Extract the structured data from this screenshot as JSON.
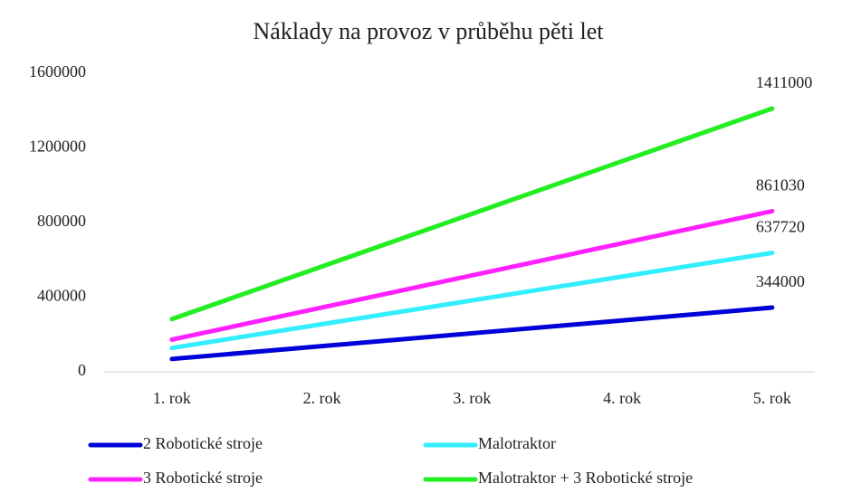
{
  "chart_data": {
    "type": "line",
    "title": "Náklady na provoz v průběhu pěti let",
    "categories": [
      "1. rok",
      "2. rok",
      "3. rok",
      "4. rok",
      "5. rok"
    ],
    "series": [
      {
        "name": "2 Robotické stroje",
        "color": "#0000d8",
        "values": [
          68800,
          137600,
          206400,
          275200,
          344000
        ]
      },
      {
        "name": "Malotraktor",
        "color": "#33eeff",
        "values": [
          127544,
          255088,
          382632,
          510176,
          637720
        ]
      },
      {
        "name": "3 Robotické stroje",
        "color": "#ff22ff",
        "values": [
          172206,
          344412,
          516618,
          688824,
          861030
        ]
      },
      {
        "name": "Malotraktor + 3 Robotické stroje",
        "color": "#22ee22",
        "values": [
          282200,
          564400,
          846600,
          1128800,
          1411000
        ]
      }
    ],
    "ylim": [
      0,
      1600000
    ],
    "yticks": [
      0,
      400000,
      800000,
      1200000,
      1600000
    ],
    "grid": false,
    "legend": "bottom"
  }
}
